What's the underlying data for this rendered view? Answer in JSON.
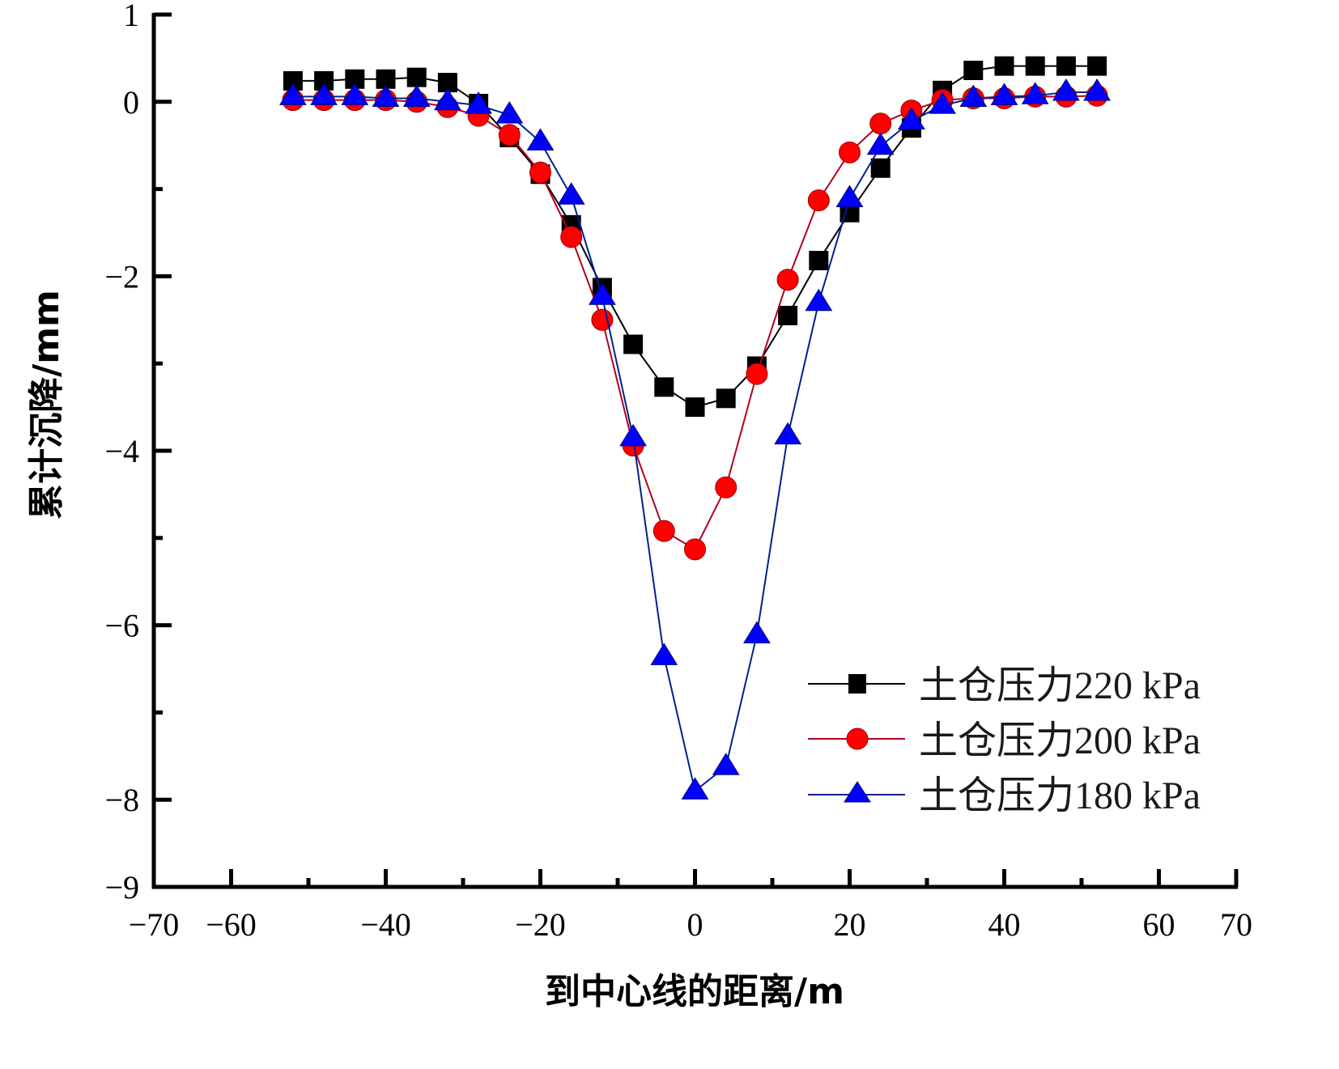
{
  "chart_data": {
    "type": "line",
    "title": "",
    "xlabel": "到中心线的距离/m",
    "ylabel": "累计沉降/mm",
    "xlim": [
      -70,
      70
    ],
    "ylim": [
      -9,
      1
    ],
    "x_ticks": [
      -70,
      -60,
      -40,
      -20,
      0,
      20,
      40,
      60,
      70
    ],
    "x_tick_labels": [
      "−70",
      "−60",
      "−40",
      "−20",
      "0",
      "20",
      "40",
      "60",
      "70"
    ],
    "x_minor_ticks": [
      -50,
      -30,
      -10,
      10,
      30,
      50
    ],
    "y_ticks": [
      1,
      0,
      -2,
      -4,
      -6,
      -8,
      -9
    ],
    "y_tick_labels": [
      "1",
      "0",
      "−2",
      "−4",
      "−6",
      "−8",
      "−9"
    ],
    "y_minor_ticks": [
      -1,
      -3,
      -5,
      -7
    ],
    "grid": false,
    "legend_position": "bottom-right",
    "x": [
      -52,
      -48,
      -44,
      -40,
      -36,
      -32,
      -28,
      -24,
      -20,
      -16,
      -12,
      -8,
      -4,
      0,
      4,
      8,
      12,
      16,
      20,
      24,
      28,
      32,
      36,
      40,
      44,
      48,
      52
    ],
    "series": [
      {
        "name": "土仓压力220 kPa",
        "color": "#000000",
        "marker": "square",
        "values": [
          0.24,
          0.24,
          0.26,
          0.26,
          0.28,
          0.22,
          -0.02,
          -0.41,
          -0.83,
          -1.41,
          -2.13,
          -2.78,
          -3.27,
          -3.5,
          -3.4,
          -3.03,
          -2.45,
          -1.82,
          -1.27,
          -0.76,
          -0.3,
          0.13,
          0.36,
          0.41,
          0.41,
          0.41,
          0.41
        ]
      },
      {
        "name": "土仓压力200 kPa",
        "color": "#ff0000",
        "marker": "circle",
        "values": [
          0.02,
          0.02,
          0.02,
          0.02,
          0.0,
          -0.06,
          -0.16,
          -0.38,
          -0.81,
          -1.55,
          -2.5,
          -3.94,
          -4.92,
          -5.13,
          -4.42,
          -3.12,
          -2.04,
          -1.13,
          -0.58,
          -0.25,
          -0.1,
          0.02,
          0.04,
          0.04,
          0.06,
          0.06,
          0.07
        ]
      },
      {
        "name": "土仓压力180 kPa",
        "color": "#0000ff",
        "marker": "triangle",
        "values": [
          0.06,
          0.06,
          0.06,
          0.04,
          0.04,
          0.0,
          -0.04,
          -0.15,
          -0.46,
          -1.08,
          -2.23,
          -3.85,
          -6.36,
          -7.9,
          -7.62,
          -6.11,
          -3.83,
          -2.3,
          -1.11,
          -0.51,
          -0.22,
          -0.04,
          0.04,
          0.06,
          0.07,
          0.11,
          0.11
        ]
      }
    ]
  }
}
